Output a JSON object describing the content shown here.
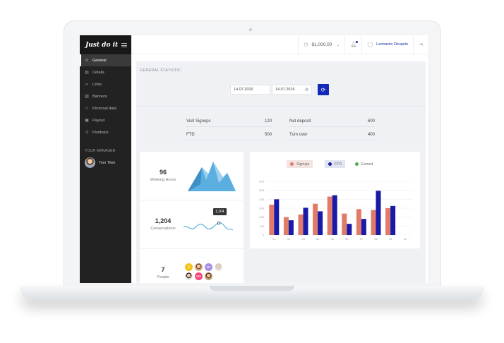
{
  "app": {
    "brand": "Just do it"
  },
  "sidebar": {
    "items": [
      {
        "label": "General",
        "icon": "star-icon",
        "active": true
      },
      {
        "label": "Details",
        "icon": "details-icon",
        "active": false
      },
      {
        "label": "Links",
        "icon": "link-icon",
        "active": false
      },
      {
        "label": "Banners",
        "icon": "banner-icon",
        "active": false
      },
      {
        "label": "Personal data",
        "icon": "user-icon",
        "active": false
      },
      {
        "label": "Payout",
        "icon": "payout-icon",
        "active": false
      },
      {
        "label": "Postback",
        "icon": "postback-icon",
        "active": false
      }
    ],
    "manager_title": "YOUR MANAGER",
    "manager_name": "Tom Tilek"
  },
  "topbar": {
    "balance": "$1,000.00",
    "user_name": "Leonardo Dicaprio"
  },
  "panel": {
    "title": "GENERAL STATISTIC",
    "date_from": "14.07.2016",
    "date_to": "14.07.2016"
  },
  "stats": [
    {
      "label": "Visit Signups",
      "value": "120"
    },
    {
      "label": "Net deposit",
      "value": "600"
    },
    {
      "label": "FTD",
      "value": "500"
    },
    {
      "label": "Turn over",
      "value": "400"
    }
  ],
  "kpis": [
    {
      "value": "96",
      "label": "Working Hours"
    },
    {
      "value": "1,204",
      "label": "Conversations",
      "tooltip": "1,204"
    },
    {
      "value": "7",
      "label": "People"
    }
  ],
  "people_initials": [
    "S",
    "MJ",
    "MS"
  ],
  "colors": {
    "accent": "#1329b8",
    "signups": "#e07b6a",
    "ftd": "#1a1aa8",
    "earned": "#4caf50",
    "mountain": "#5aaee0"
  },
  "chart_data": {
    "type": "bar",
    "categories": [
      "01",
      "02",
      "03",
      "04",
      "05",
      "06",
      "07",
      "08",
      "09",
      "10"
    ],
    "series": [
      {
        "name": "Signups",
        "values": [
          340,
          200,
          230,
          350,
          430,
          240,
          290,
          280,
          300,
          0
        ]
      },
      {
        "name": "FTD",
        "values": [
          400,
          165,
          305,
          265,
          445,
          125,
          180,
          495,
          325,
          0
        ]
      }
    ],
    "legend": [
      "Signups",
      "FTD",
      "Earned"
    ],
    "ylim": [
      0,
      600
    ],
    "yticks": [
      "600",
      "500",
      "400",
      "300",
      "200",
      "100",
      "0"
    ],
    "xticks": [
      "01",
      "02",
      "03",
      "04",
      "05",
      "06",
      "07",
      "08",
      "09",
      "10"
    ],
    "grid": true,
    "legend_position": "top-center"
  }
}
